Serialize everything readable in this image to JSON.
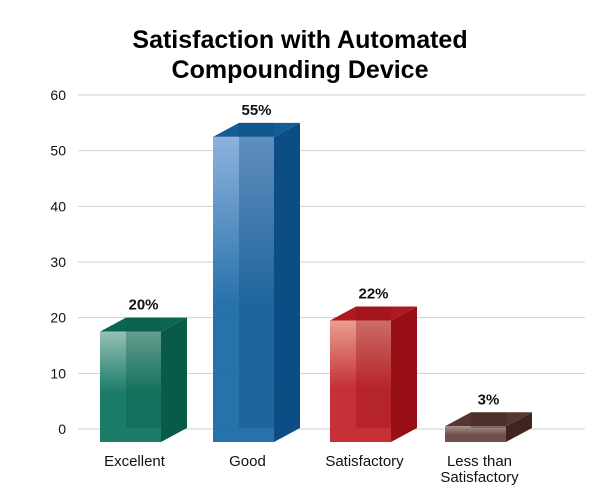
{
  "chart_data": {
    "type": "bar",
    "title": [
      "Satisfaction with Automated",
      "Compounding Device"
    ],
    "xlabel": "",
    "ylabel": "",
    "ylim": [
      0,
      60
    ],
    "yticks": [
      "0",
      "10",
      "20",
      "30",
      "40",
      "50",
      "60"
    ],
    "grid": true,
    "categories": [
      "Excellent",
      "Good",
      "Satisfactory",
      [
        "Less than",
        "Satisfactory"
      ]
    ],
    "values": [
      20,
      55,
      22,
      3
    ],
    "data_labels": [
      "20%",
      "55%",
      "22%",
      "3%"
    ],
    "colors": [
      {
        "front": "#0f7560",
        "side": "#075b47",
        "top": "#0b6552",
        "light": "#8fbdb2"
      },
      {
        "front": "#1b6aa6",
        "side": "#0d4d85",
        "top": "#135c96",
        "light": "#88aedc"
      },
      {
        "front": "#c2262c",
        "side": "#990f16",
        "top": "#ad1a20",
        "light": "#e89a8a"
      },
      {
        "front": "#6a4640",
        "side": "#3f2420",
        "top": "#573630",
        "light": "#a08a86"
      }
    ]
  }
}
